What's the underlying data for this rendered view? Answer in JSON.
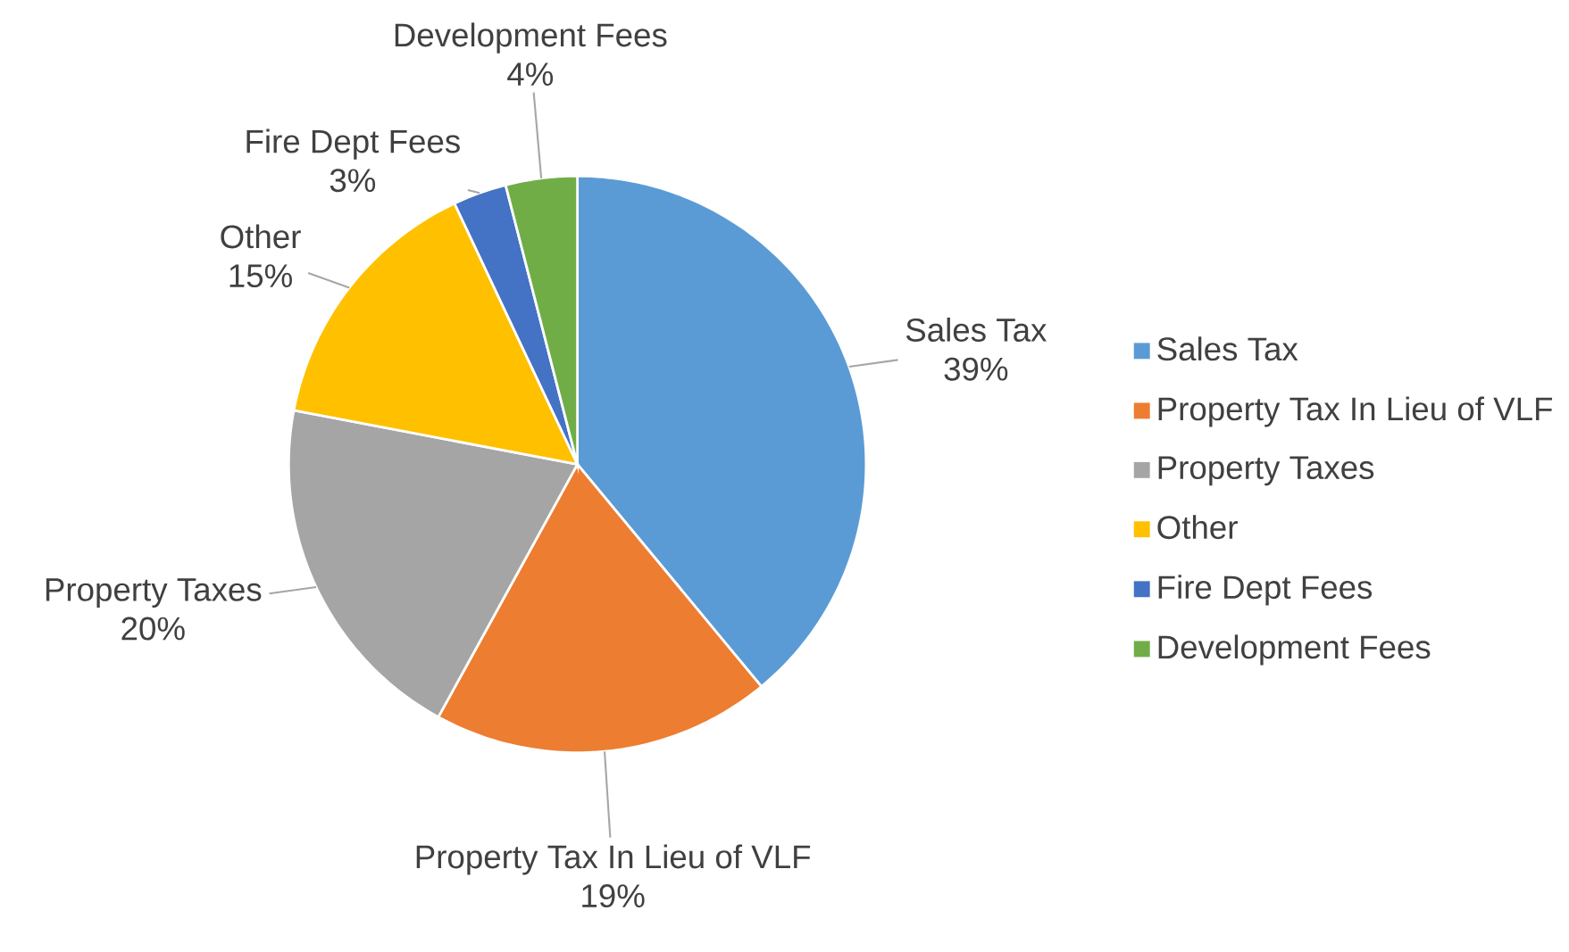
{
  "chart_data": {
    "type": "pie",
    "categories": [
      "Sales Tax",
      "Property Tax In Lieu of VLF",
      "Property Taxes",
      "Other",
      "Fire Dept Fees",
      "Development Fees"
    ],
    "values": [
      39,
      19,
      20,
      15,
      3,
      4
    ],
    "value_labels": [
      "39%",
      "19%",
      "20%",
      "15%",
      "3%",
      "4%"
    ],
    "colors": [
      "#5b9bd5",
      "#ed7d31",
      "#a5a5a5",
      "#ffc000",
      "#4472c4",
      "#70ad47"
    ],
    "legend": "right"
  }
}
